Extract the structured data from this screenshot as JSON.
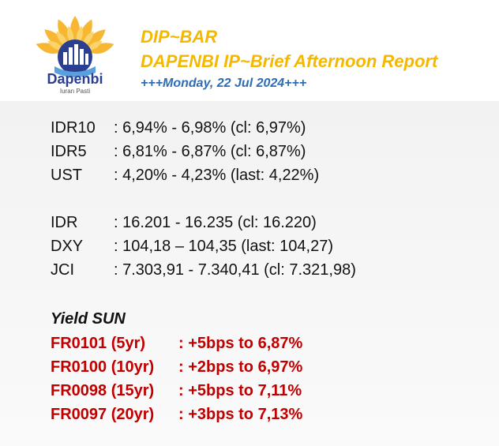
{
  "colors": {
    "title_yellow": "#f5b800",
    "date_blue": "#2e6db4",
    "yield_red": "#c00000",
    "logo_blue": "#2a3f8f"
  },
  "logo": {
    "icon": "sun-building-logo-icon",
    "name": "Dapenbi",
    "tagline": "Iuran Pasti"
  },
  "header": {
    "title": "DIP~BAR",
    "subtitle": "DAPENBI IP~Brief Afternoon Report",
    "date": "+++Monday, 22 Jul 2024+++"
  },
  "rates": [
    {
      "label": "IDR10",
      "value": ": 6,94% - 6,98% (cl: 6,97%)"
    },
    {
      "label": "IDR5",
      "value": ": 6,81% - 6,87% (cl: 6,87%)"
    },
    {
      "label": "UST",
      "value": ": 4,20% - 4,23% (last: 4,22%)"
    }
  ],
  "markets": [
    {
      "label": "IDR",
      "value": ": 16.201 - 16.235 (cl: 16.220)"
    },
    {
      "label": "DXY",
      "value": ": 104,18 – 104,35 (last: 104,27)"
    },
    {
      "label": "JCI",
      "value": ": 7.303,91 - 7.340,41 (cl: 7.321,98)"
    }
  ],
  "yield_sun": {
    "title": "Yield SUN",
    "items": [
      {
        "label": "FR0101 (5yr)",
        "value": ": +5bps to 6,87%"
      },
      {
        "label": "FR0100 (10yr)",
        "value": ": +2bps to 6,97%"
      },
      {
        "label": "FR0098 (15yr)",
        "value": ": +5bps to 7,11%"
      },
      {
        "label": "FR0097 (20yr)",
        "value": ": +3bps to 7,13%"
      }
    ]
  }
}
